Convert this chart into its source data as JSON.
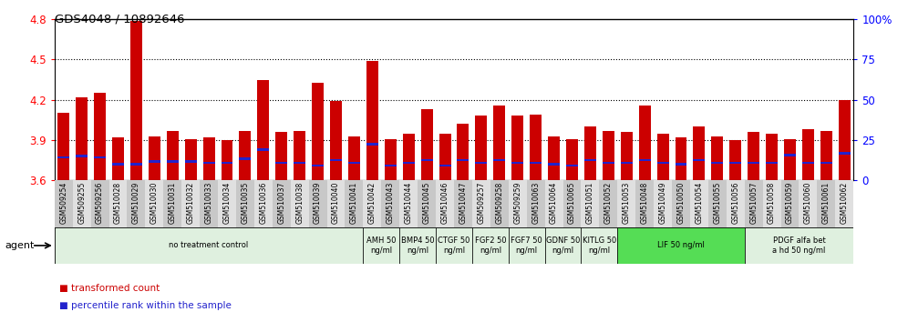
{
  "title": "GDS4048 / 10892646",
  "samples": [
    "GSM509254",
    "GSM509255",
    "GSM509256",
    "GSM510028",
    "GSM510029",
    "GSM510030",
    "GSM510031",
    "GSM510032",
    "GSM510033",
    "GSM510034",
    "GSM510035",
    "GSM510036",
    "GSM510037",
    "GSM510038",
    "GSM510039",
    "GSM510040",
    "GSM510041",
    "GSM510042",
    "GSM510043",
    "GSM510044",
    "GSM510045",
    "GSM510046",
    "GSM510047",
    "GSM509257",
    "GSM509258",
    "GSM509259",
    "GSM510063",
    "GSM510064",
    "GSM510065",
    "GSM510051",
    "GSM510052",
    "GSM510053",
    "GSM510048",
    "GSM510049",
    "GSM510050",
    "GSM510054",
    "GSM510055",
    "GSM510056",
    "GSM510057",
    "GSM510058",
    "GSM510059",
    "GSM510060",
    "GSM510061",
    "GSM510062"
  ],
  "bar_values": [
    4.1,
    4.22,
    4.25,
    3.92,
    4.79,
    3.93,
    3.97,
    3.91,
    3.92,
    3.9,
    3.97,
    4.35,
    3.96,
    3.97,
    4.33,
    4.19,
    3.93,
    4.49,
    3.91,
    3.95,
    4.13,
    3.95,
    4.02,
    4.08,
    4.16,
    4.08,
    4.09,
    3.93,
    3.91,
    4.0,
    3.97,
    3.96,
    4.16,
    3.95,
    3.92,
    4.0,
    3.93,
    3.9,
    3.96,
    3.95,
    3.91,
    3.98,
    3.97,
    4.2
  ],
  "percentile_values": [
    3.77,
    3.78,
    3.77,
    3.72,
    3.72,
    3.74,
    3.74,
    3.74,
    3.73,
    3.73,
    3.76,
    3.83,
    3.73,
    3.73,
    3.71,
    3.75,
    3.73,
    3.87,
    3.71,
    3.73,
    3.75,
    3.71,
    3.75,
    3.73,
    3.75,
    3.73,
    3.73,
    3.72,
    3.71,
    3.75,
    3.73,
    3.73,
    3.75,
    3.73,
    3.72,
    3.75,
    3.73,
    3.73,
    3.73,
    3.73,
    3.79,
    3.73,
    3.73,
    3.8
  ],
  "bar_color": "#cc0000",
  "percentile_color": "#2222cc",
  "ymin": 3.6,
  "ymax": 4.8,
  "yticks": [
    3.6,
    3.9,
    4.2,
    4.5,
    4.8
  ],
  "right_yticks": [
    0,
    25,
    50,
    75,
    100
  ],
  "right_ytick_labels": [
    "0",
    "25",
    "50",
    "75",
    "100%"
  ],
  "agent_groups": [
    {
      "label": "no treatment control",
      "start": 0,
      "end": 17,
      "color": "#dff0df"
    },
    {
      "label": "AMH 50\nng/ml",
      "start": 17,
      "end": 19,
      "color": "#dff0df"
    },
    {
      "label": "BMP4 50\nng/ml",
      "start": 19,
      "end": 21,
      "color": "#dff0df"
    },
    {
      "label": "CTGF 50\nng/ml",
      "start": 21,
      "end": 23,
      "color": "#dff0df"
    },
    {
      "label": "FGF2 50\nng/ml",
      "start": 23,
      "end": 25,
      "color": "#dff0df"
    },
    {
      "label": "FGF7 50\nng/ml",
      "start": 25,
      "end": 27,
      "color": "#dff0df"
    },
    {
      "label": "GDNF 50\nng/ml",
      "start": 27,
      "end": 29,
      "color": "#dff0df"
    },
    {
      "label": "KITLG 50\nng/ml",
      "start": 29,
      "end": 31,
      "color": "#dff0df"
    },
    {
      "label": "LIF 50 ng/ml",
      "start": 31,
      "end": 38,
      "color": "#55dd55"
    },
    {
      "label": "PDGF alfa bet\na hd 50 ng/ml",
      "start": 38,
      "end": 44,
      "color": "#dff0df"
    }
  ],
  "legend_items": [
    {
      "label": "transformed count",
      "color": "#cc0000"
    },
    {
      "label": "percentile rank within the sample",
      "color": "#2222cc"
    }
  ],
  "bar_width": 0.65
}
